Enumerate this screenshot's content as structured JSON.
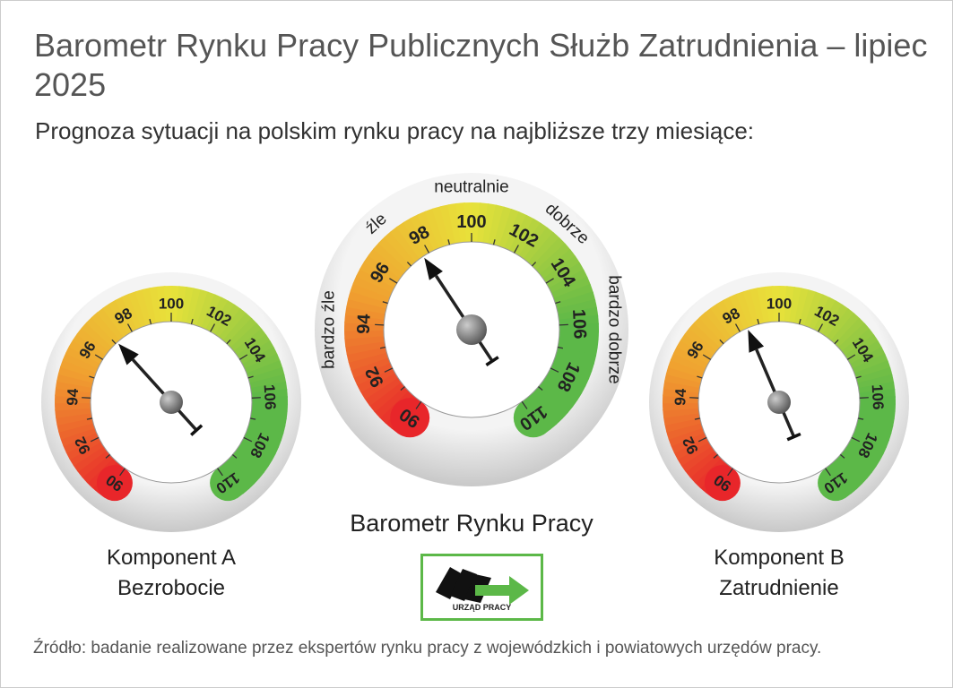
{
  "title": "Barometr Rynku Pracy Publicznych Służb Zatrudnienia – lipiec 2025",
  "subtitle": "Prognoza sytuacji na polskim rynku pracy na najbliższe trzy miesiące:",
  "source": "Źródło: badanie realizowane przez ekspertów rynku pracy z wojewódzkich i powiatowych urzędów pracy.",
  "logo_text": "URZĄD PRACY",
  "chart_data": {
    "type": "gauge",
    "scale": {
      "min": 90,
      "max": 110,
      "tick_labels": [
        "90",
        "92",
        "94",
        "96",
        "98",
        "100",
        "102",
        "104",
        "106",
        "108",
        "110"
      ]
    },
    "zone_labels": [
      "bardzo źle",
      "źle",
      "neutralnie",
      "dobrze",
      "bardzo dobrze"
    ],
    "colors": {
      "low": "#e8262a",
      "mid_low": "#f0a030",
      "mid": "#e8e23a",
      "high": "#5cb848"
    },
    "gauges": [
      {
        "name": "Komponent A",
        "name2": "Bezrobocie",
        "value": 97.1
      },
      {
        "name": "Barometr Rynku Pracy",
        "name2": "",
        "value": 97.7
      },
      {
        "name": "Komponent B",
        "name2": "Zatrudnienie",
        "value": 98.4
      }
    ]
  }
}
